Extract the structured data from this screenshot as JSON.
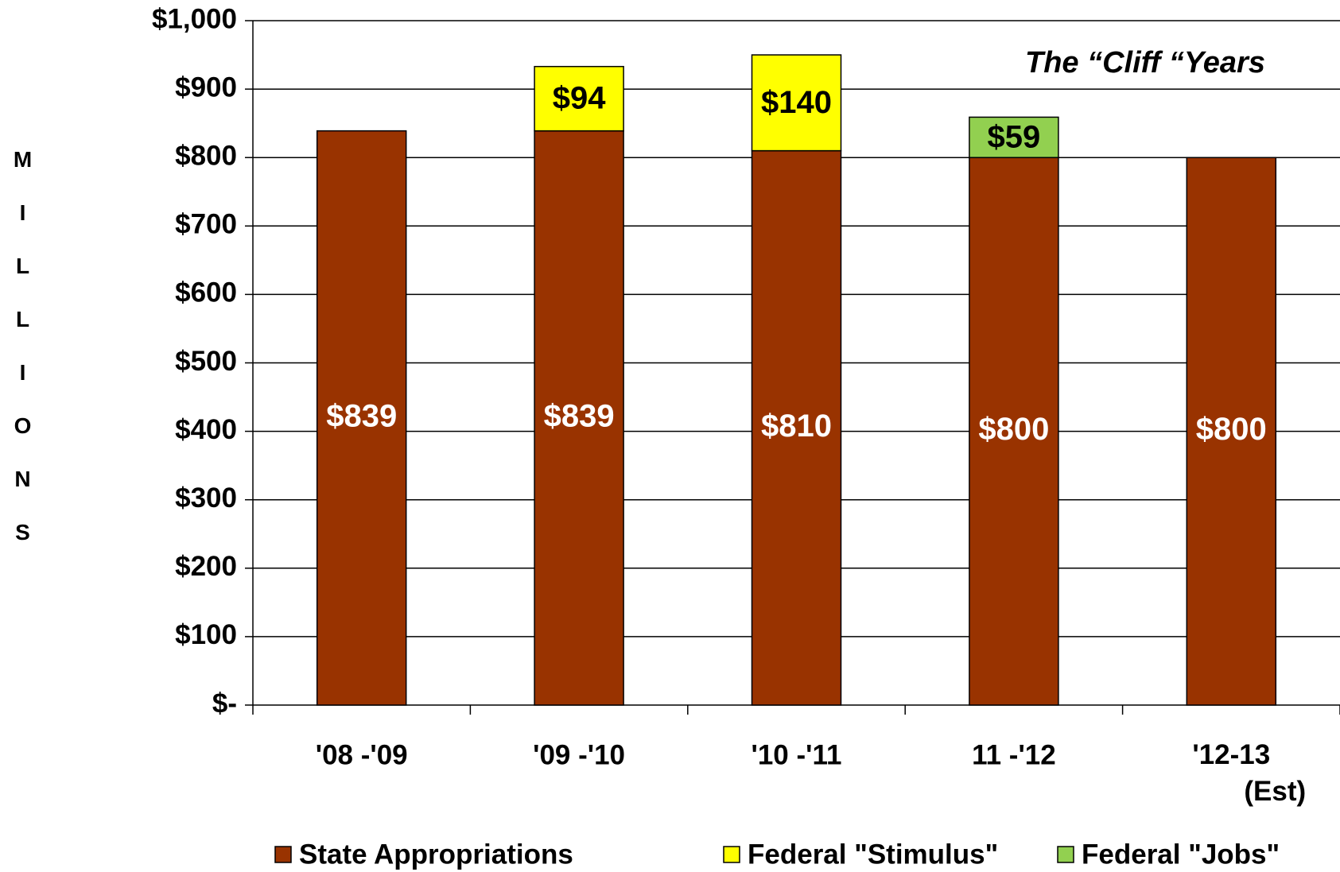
{
  "chart_data": {
    "type": "stacked_bar",
    "annotation": "The “Cliff “Years",
    "y_label": "MILLIONS",
    "categories": [
      "'08 -'09",
      "'09 -'10",
      "'10 -'11",
      "11 -'12",
      "'12-13\n(Est)"
    ],
    "series": [
      {
        "name": "State Appropriations",
        "color": "#993300",
        "label_color": "#ffffff",
        "values": [
          839,
          839,
          810,
          800,
          800
        ],
        "value_labels": [
          "$839",
          "$839",
          "$810",
          "$800",
          "$800"
        ]
      },
      {
        "name": "Federal \"Stimulus\"",
        "color": "#ffff00",
        "label_color": "#000000",
        "values": [
          null,
          94,
          140,
          null,
          null
        ],
        "value_labels": [
          null,
          "$94",
          "$140",
          null,
          null
        ]
      },
      {
        "name": "Federal \"Jobs\"",
        "color": "#92d050",
        "label_color": "#000000",
        "values": [
          null,
          null,
          null,
          59,
          null
        ],
        "value_labels": [
          null,
          null,
          null,
          "$59",
          null
        ]
      }
    ],
    "ylim": [
      0,
      1000
    ],
    "yticks": [
      {
        "value": 0,
        "label": "$-"
      },
      {
        "value": 100,
        "label": "$100"
      },
      {
        "value": 200,
        "label": "$200"
      },
      {
        "value": 300,
        "label": "$300"
      },
      {
        "value": 400,
        "label": "$400"
      },
      {
        "value": 500,
        "label": "$500"
      },
      {
        "value": 600,
        "label": "$600"
      },
      {
        "value": 700,
        "label": "$700"
      },
      {
        "value": 800,
        "label": "$800"
      },
      {
        "value": 900,
        "label": "$900"
      },
      {
        "value": 1000,
        "label": "$1,000"
      }
    ],
    "grid": true,
    "legend": "bottom"
  }
}
